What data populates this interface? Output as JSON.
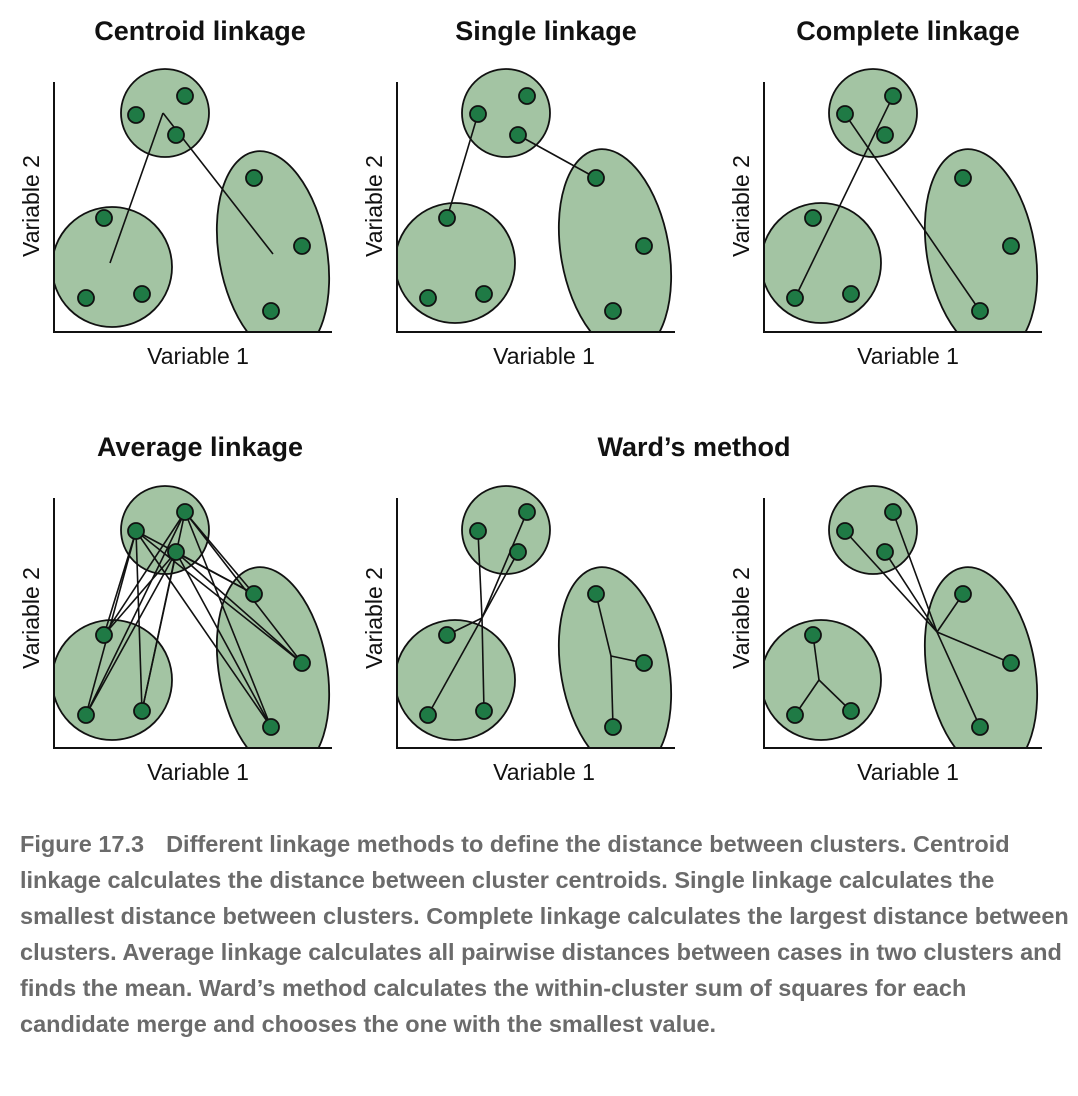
{
  "titles": {
    "centroid": "Centroid linkage",
    "single": "Single linkage",
    "complete": "Complete linkage",
    "average": "Average linkage",
    "ward": "Ward’s method"
  },
  "axis": {
    "x": "Variable 1",
    "y": "Variable 2"
  },
  "caption": {
    "label": "Figure 17.3",
    "text": "Different linkage methods to define the distance between clusters. Centroid linkage calculates the distance between cluster centroids. Single linkage calculates the smallest distance between clusters. Complete linkage calculates the largest distance between clusters. Average linkage calculates all pairwise distances between cases in two clusters and finds the mean. Ward’s method calculates the within-cluster sum of squares for each candidate merge and chooses the one with the smallest value."
  },
  "colors": {
    "cluster_fill": "#a3c4a3",
    "point_fill": "#1f7a45",
    "caption_text": "#6b6b6b"
  }
}
